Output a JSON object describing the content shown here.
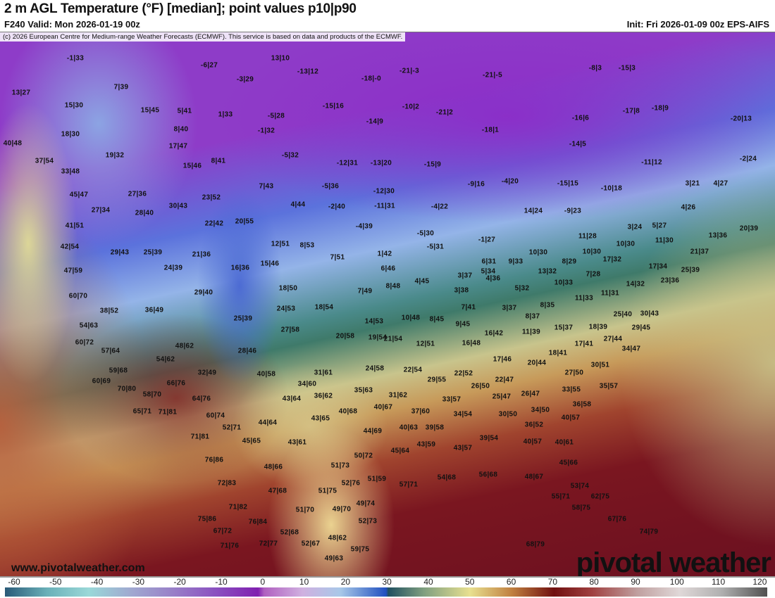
{
  "header": {
    "title": "2 m AGL Temperature (°F) [median]; point values p10|p90",
    "valid": "F240 Valid: Mon 2026-01-19 00z",
    "init": "Init: Fri 2026-01-09 00z EPS-AIFS"
  },
  "map": {
    "copyright": "(c) 2026 European Centre for Medium-range Weather Forecasts (ECMWF). This service is based on data and products of the ECMWF.",
    "website": "www.pivotalweather.com",
    "logo": "pivotal weather",
    "points": [
      "-1|33",
      "13|27",
      "7|39",
      "15|30",
      "15|45",
      "5|41",
      "1|33",
      "-6|27",
      "-3|29",
      "13|10",
      "-13|12",
      "-18|-0",
      "-21|-3",
      "-21|-5",
      "-15|3",
      "-8|3",
      "-5|28",
      "-1|32",
      "-15|16",
      "-14|9",
      "-10|2",
      "-21|2",
      "-18|1",
      "-16|6",
      "-17|8",
      "-18|9",
      "-20|13",
      "18|30",
      "8|40",
      "17|47",
      "40|48",
      "19|32",
      "-5|32",
      "-14|5",
      "37|54",
      "15|46",
      "8|41",
      "-12|31",
      "-13|20",
      "-15|9",
      "-11|12",
      "-2|24",
      "33|48",
      "27|36",
      "45|47",
      "7|43",
      "-5|36",
      "-12|30",
      "-9|16",
      "-4|20",
      "-15|15",
      "-10|18",
      "3|21",
      "4|27",
      "27|34",
      "28|40",
      "30|43",
      "23|52",
      "4|44",
      "-2|40",
      "-11|31",
      "-4|22",
      "14|24",
      "-9|23",
      "4|26",
      "41|51",
      "22|42",
      "20|55",
      "-4|39",
      "-5|30",
      "3|24",
      "5|27",
      "13|36",
      "20|39",
      "11|28",
      "-1|27",
      "42|54",
      "12|51",
      "8|53",
      "-5|31",
      "10|30",
      "10|30",
      "10|30",
      "11|30",
      "29|43",
      "25|39",
      "21|36",
      "1|42",
      "21|37",
      "7|51",
      "6|31",
      "9|33",
      "17|32",
      "8|29",
      "47|59",
      "16|36",
      "15|46",
      "24|39",
      "6|46",
      "13|32",
      "7|28",
      "17|34",
      "25|39",
      "5|34",
      "3|37",
      "4|45",
      "4|36",
      "10|33",
      "14|32",
      "23|36",
      "29|40",
      "18|50",
      "8|48",
      "7|49",
      "3|38",
      "5|32",
      "11|31",
      "60|70",
      "11|33",
      "38|52",
      "36|49",
      "24|53",
      "18|54",
      "7|41",
      "3|37",
      "8|35",
      "25|39",
      "10|48",
      "8|45",
      "8|37",
      "25|40",
      "30|43",
      "14|53",
      "9|45",
      "54|63",
      "27|58",
      "11|39",
      "15|37",
      "18|39",
      "20|58",
      "19|54",
      "16|42",
      "29|45",
      "27|44",
      "34|47",
      "17|41",
      "18|41",
      "17|46",
      "20|44",
      "30|51",
      "12|51",
      "16|48",
      "60|72",
      "57|64",
      "48|62",
      "28|46",
      "21|54",
      "24|58",
      "22|54",
      "59|68",
      "54|62",
      "32|49",
      "40|58",
      "31|61",
      "22|52",
      "29|55",
      "22|47",
      "27|50",
      "60|69",
      "66|76",
      "34|60",
      "26|50",
      "26|47",
      "33|55",
      "35|57",
      "70|80",
      "58|70",
      "35|63",
      "31|62",
      "64|76",
      "43|64",
      "36|62",
      "25|47",
      "33|57",
      "36|58",
      "65|71",
      "71|81",
      "60|74",
      "40|67",
      "37|60",
      "40|68",
      "34|54",
      "30|50",
      "34|50",
      "40|57",
      "43|65",
      "44|64",
      "52|71",
      "44|69",
      "40|63",
      "39|58",
      "36|52",
      "71|81",
      "45|65",
      "43|61",
      "39|54",
      "40|57",
      "40|61",
      "43|59",
      "43|57",
      "45|64",
      "50|72",
      "76|86",
      "48|66",
      "51|73",
      "45|66",
      "47|68",
      "51|75",
      "52|76",
      "51|59",
      "57|71",
      "54|68",
      "56|68",
      "48|67",
      "72|83",
      "53|74",
      "55|71",
      "62|75",
      "71|82",
      "51|70",
      "49|70",
      "49|74",
      "58|75",
      "75|86",
      "76|84",
      "52|73",
      "67|76",
      "67|72",
      "52|68",
      "48|62",
      "74|79",
      "72|77",
      "52|67",
      "71|76",
      "59|75",
      "68|79",
      "49|63"
    ]
  },
  "colorbar": {
    "ticks": [
      "-60",
      "-50",
      "-40",
      "-30",
      "-20",
      "-10",
      "0",
      "10",
      "20",
      "30",
      "40",
      "50",
      "60",
      "70",
      "80",
      "90",
      "100",
      "110",
      "120"
    ]
  }
}
